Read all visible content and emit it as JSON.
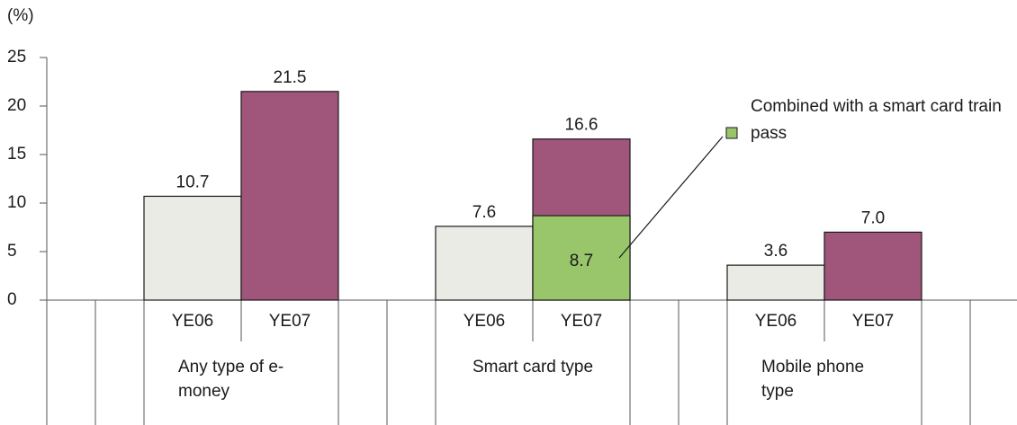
{
  "chart_data": {
    "type": "bar",
    "y_axis_label": "(%)",
    "categories": [
      "Any type of e-money",
      "Smart card type",
      "Mobile phone type"
    ],
    "series": [
      {
        "name": "YE06",
        "color": "#ebebe6",
        "values": [
          10.7,
          7.6,
          3.6
        ]
      },
      {
        "name": "YE07",
        "color": "#a0557a",
        "values": [
          21.5,
          16.6,
          7.0
        ],
        "value_labels": [
          "21.5",
          "16.6",
          "7.0"
        ]
      },
      {
        "name": "Combined with a smart card train pass",
        "color": "#99c66b",
        "values": [
          null,
          8.7,
          null
        ]
      }
    ],
    "ylim": [
      0,
      25
    ],
    "yticks": [
      0,
      5,
      10,
      15,
      20,
      25
    ]
  }
}
